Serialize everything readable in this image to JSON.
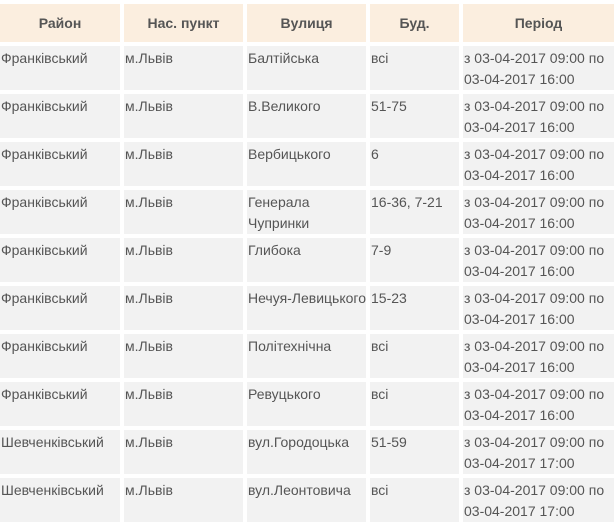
{
  "headers": [
    "Район",
    "Нас. пункт",
    "Вулиця",
    "Буд.",
    "Період"
  ],
  "rows": [
    [
      "Франківський",
      "м.Львів",
      "Балтійська",
      "всі",
      "з 03-04-2017 09:00 по 03-04-2017 16:00"
    ],
    [
      "Франківський",
      "м.Львів",
      "В.Великого",
      "51-75",
      "з 03-04-2017 09:00 по 03-04-2017 16:00"
    ],
    [
      "Франківський",
      "м.Львів",
      "Вербицького",
      "6",
      "з 03-04-2017 09:00 по 03-04-2017 16:00"
    ],
    [
      "Франківський",
      "м.Львів",
      "Генерала Чупринки",
      "16-36, 7-21",
      "з 03-04-2017 09:00 по 03-04-2017 16:00"
    ],
    [
      "Франківський",
      "м.Львів",
      "Глибока",
      "7-9",
      "з 03-04-2017 09:00 по 03-04-2017 16:00"
    ],
    [
      "Франківський",
      "м.Львів",
      "Нечуя-Левицького",
      "15-23",
      "з 03-04-2017 09:00 по 03-04-2017 16:00"
    ],
    [
      "Франківський",
      "м.Львів",
      "Політехнічна",
      "всі",
      "з 03-04-2017 09:00 по 03-04-2017 16:00"
    ],
    [
      "Франківський",
      "м.Львів",
      "Ревуцького",
      "всі",
      "з 03-04-2017 09:00 по 03-04-2017 16:00"
    ],
    [
      "Шевченківський",
      "м.Львів",
      "вул.Городоцька",
      "51-59",
      "з 03-04-2017 09:00 по 03-04-2017 17:00"
    ],
    [
      "Шевченківський",
      "м.Львів",
      "вул.Леонтовича",
      "всі",
      "з 03-04-2017 09:00 по 03-04-2017 17:00"
    ]
  ],
  "colors": {
    "header_bg": "#fbeedf",
    "cell_bg": "#f2f2f2",
    "text": "#555555"
  }
}
